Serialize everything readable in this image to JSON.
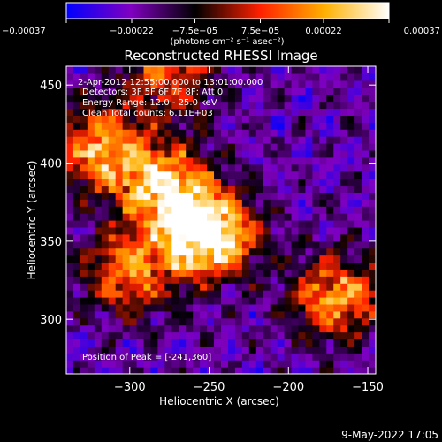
{
  "chart_data": {
    "type": "heatmap",
    "title": "Reconstructed RHESSI Image",
    "xlabel": "Heliocentric X (arcsec)",
    "ylabel": "Heliocentric Y (arcsec)",
    "xlim": [
      -340,
      -145
    ],
    "ylim": [
      265,
      462
    ],
    "x_ticks": [
      -300,
      -250,
      -200,
      -150
    ],
    "x_tick_labels": [
      "−300",
      "−250",
      "−200",
      "−150"
    ],
    "y_ticks": [
      300,
      350,
      400,
      450
    ],
    "y_tick_labels": [
      "300",
      "350",
      "400",
      "450"
    ],
    "colorbar": {
      "min": -0.00037,
      "max": 0.00037,
      "ticks": [
        -0.00037,
        -0.00022,
        -7.5e-05,
        7.5e-05,
        0.00022,
        0.00037
      ],
      "tick_labels": [
        "−0.00037",
        "−0.00022",
        "−7.5e−05",
        "7.5e−05",
        "0.00022",
        "0.00037"
      ],
      "units": "(photons cm⁻² s⁻¹ asec⁻²)",
      "colors": [
        "#0000ff",
        "#8000c0",
        "#000000",
        "#ff2000",
        "#ffb000",
        "#ffffff"
      ]
    },
    "annotations": {
      "time_range": "2-Apr-2012 12:55:00.000 to 13:01:00.000",
      "detectors": "Detectors: 3F 5F 6F 7F 8F; Att 0",
      "energy_range": "Energy Range: 12.0 - 25.0 keV",
      "clean": "Clean    Total counts: 6.11E+03",
      "peak": "Position of Peak = [-241,360]"
    },
    "peak_position": [
      -241,
      360
    ],
    "total_counts": 6110,
    "features": [
      {
        "label": "main-source",
        "x": -251,
        "y": 355,
        "level": 0.95
      },
      {
        "label": "arc-upper",
        "x": -280,
        "y": 385,
        "level": 0.7
      },
      {
        "label": "left-upper",
        "x": -320,
        "y": 410,
        "level": 0.55
      },
      {
        "label": "right-lower",
        "x": -170,
        "y": 315,
        "level": 0.55
      },
      {
        "label": "left-lower",
        "x": -300,
        "y": 330,
        "level": 0.5
      },
      {
        "label": "top-edge",
        "x": -275,
        "y": 455,
        "level": 0.4
      }
    ]
  },
  "footer": {
    "timestamp": "9-May-2022 17:05"
  }
}
